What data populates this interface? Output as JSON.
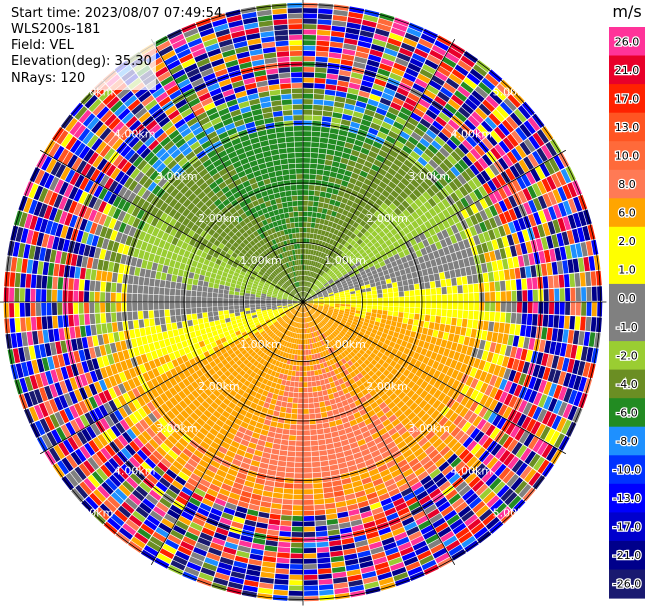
{
  "header": {
    "start_time": "Start time: 2023/08/07 07:49:54",
    "instrument": "WLS200s-181",
    "field": "Field: VEL",
    "elevation": "Elevation(deg): 35.30",
    "nrays": "NRays: 120"
  },
  "chart_data": {
    "type": "heatmap",
    "projection": "polar-ppi",
    "title": "",
    "field": "VEL",
    "units": "m/s",
    "n_rays": 120,
    "range_rings_km": [
      1.0,
      2.0,
      3.0,
      4.0,
      5.0
    ],
    "ring_labels": [
      "1.00km",
      "2.00km",
      "3.00km",
      "4.00km",
      "5.00km"
    ],
    "azimuth_lines_deg": [
      0,
      30,
      60,
      90,
      120,
      150,
      180,
      210,
      240,
      270,
      300,
      330
    ],
    "max_range_km": 5.1,
    "colorbar": {
      "label": "m/s",
      "ticks": [
        "26.0",
        "21.0",
        "17.0",
        "13.0",
        "10.0",
        "8.0",
        "6.0",
        "2.0",
        "1.0",
        "0.0",
        "-1.0",
        "-2.0",
        "-4.0",
        "-6.0",
        "-8.0",
        "-10.0",
        "-13.0",
        "-17.0",
        "-21.0",
        "-26.0",
        "-30.0"
      ],
      "bins": [
        {
          "min": 21.0,
          "max": 26.0,
          "color": "#ff3399"
        },
        {
          "min": 17.0,
          "max": 21.0,
          "color": "#e8002a"
        },
        {
          "min": 13.0,
          "max": 17.0,
          "color": "#ff2200"
        },
        {
          "min": 10.0,
          "max": 13.0,
          "color": "#ff5522"
        },
        {
          "min": 8.0,
          "max": 10.0,
          "color": "#ff6a3a"
        },
        {
          "min": 6.0,
          "max": 8.0,
          "color": "#ff7a55"
        },
        {
          "min": 2.0,
          "max": 6.0,
          "color": "#ffa500"
        },
        {
          "min": 1.0,
          "max": 2.0,
          "color": "#ffff00"
        },
        {
          "min": 0.0,
          "max": 1.0,
          "color": "#ffff00"
        },
        {
          "min": -1.0,
          "max": 0.0,
          "color": "#808080"
        },
        {
          "min": -2.0,
          "max": -1.0,
          "color": "#808080"
        },
        {
          "min": -4.0,
          "max": -2.0,
          "color": "#9acd32"
        },
        {
          "min": -6.0,
          "max": -4.0,
          "color": "#6b8e23"
        },
        {
          "min": -8.0,
          "max": -6.0,
          "color": "#228b22"
        },
        {
          "min": -10.0,
          "max": -8.0,
          "color": "#1e90ff"
        },
        {
          "min": -13.0,
          "max": -10.0,
          "color": "#0033ff"
        },
        {
          "min": -17.0,
          "max": -13.0,
          "color": "#0000ff"
        },
        {
          "min": -21.0,
          "max": -17.0,
          "color": "#0000cd"
        },
        {
          "min": -26.0,
          "max": -21.0,
          "color": "#00008b"
        },
        {
          "min": -30.0,
          "max": -26.0,
          "color": "#191970"
        }
      ]
    }
  }
}
